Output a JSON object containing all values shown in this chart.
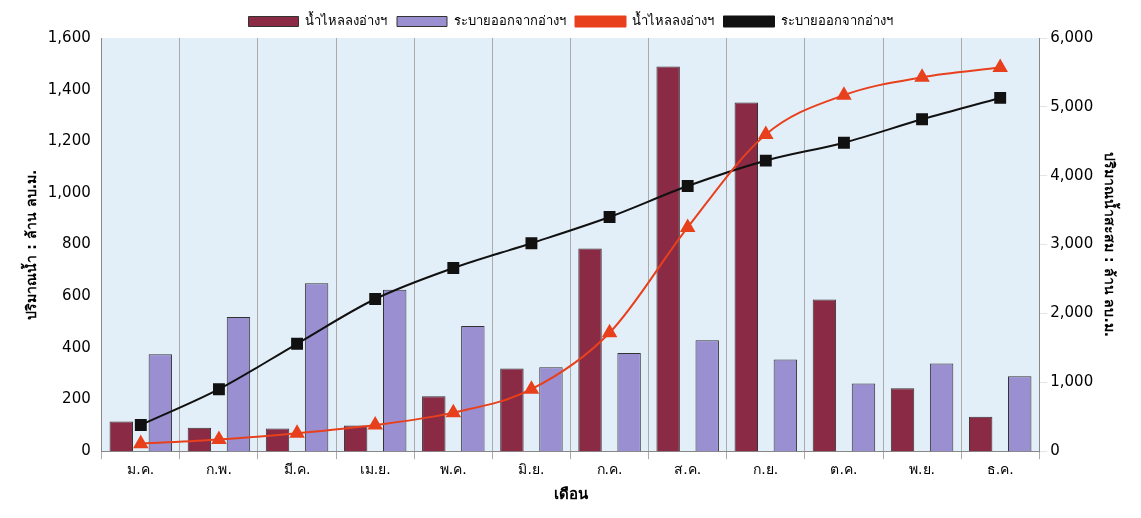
{
  "chart_data": {
    "type": "bar",
    "categories": [
      "ม.ค.",
      "ก.พ.",
      "มี.ค.",
      "เม.ย.",
      "พ.ค.",
      "มิ.ย.",
      "ก.ค.",
      "ส.ค.",
      "ก.ย.",
      "ต.ค.",
      "พ.ย.",
      "ธ.ค."
    ],
    "xlabel": "เดือน",
    "ylabel": "ปริมาณน้ำ : ล้าน ลบ.ม.",
    "y2label": "ปริมาณน้ำสะสม : ล้าน ลบ.ม.",
    "series": [
      {
        "name": "น้ำไหลลงอ่างฯ",
        "color": "#8b2a45",
        "values": [
          115,
          91,
          88,
          100,
          213,
          320,
          785,
          1490,
          1350,
          587,
          244,
          133
        ]
      },
      {
        "name": "ระบายออกจากอ่างฯ",
        "color": "#9a8fd0",
        "values": [
          375,
          520,
          650,
          625,
          485,
          325,
          380,
          430,
          355,
          262,
          340,
          290
        ]
      },
      {
        "name": "น้ำไหลลงอ่างฯ",
        "type": "line",
        "axis": "y2",
        "marker": "triangle",
        "color": "#e8401c",
        "values": [
          110,
          170,
          260,
          380,
          560,
          900,
          1720,
          3250,
          4600,
          5170,
          5430,
          5570
        ]
      },
      {
        "name": "ระบายออกจากอ่างฯ",
        "type": "line",
        "axis": "y2",
        "marker": "square",
        "color": "#111111",
        "values": [
          380,
          900,
          1560,
          2210,
          2660,
          3020,
          3400,
          3850,
          4220,
          4480,
          4820,
          5130
        ]
      }
    ],
    "ylim": [
      0,
      1600
    ],
    "yticks": [
      {
        "value": 0,
        "label": "0"
      },
      {
        "value": 200,
        "label": "200"
      },
      {
        "value": 400,
        "label": "400"
      },
      {
        "value": 600,
        "label": "600"
      },
      {
        "value": 800,
        "label": "800"
      },
      {
        "value": 1000,
        "label": "1,000"
      },
      {
        "value": 1200,
        "label": "1,200"
      },
      {
        "value": 1400,
        "label": "1,400"
      },
      {
        "value": 1600,
        "label": "1,600"
      }
    ],
    "y2lim": [
      0,
      6000
    ],
    "y2ticks": [
      {
        "value": 0,
        "label": "0"
      },
      {
        "value": 1000,
        "label": "1,000"
      },
      {
        "value": 2000,
        "label": "2,000"
      },
      {
        "value": 3000,
        "label": "3,000"
      },
      {
        "value": 4000,
        "label": "4,000"
      },
      {
        "value": 5000,
        "label": "5,000"
      },
      {
        "value": 6000,
        "label": "6,000"
      }
    ],
    "grid": "x",
    "legend": "top",
    "line_style": "solid"
  }
}
